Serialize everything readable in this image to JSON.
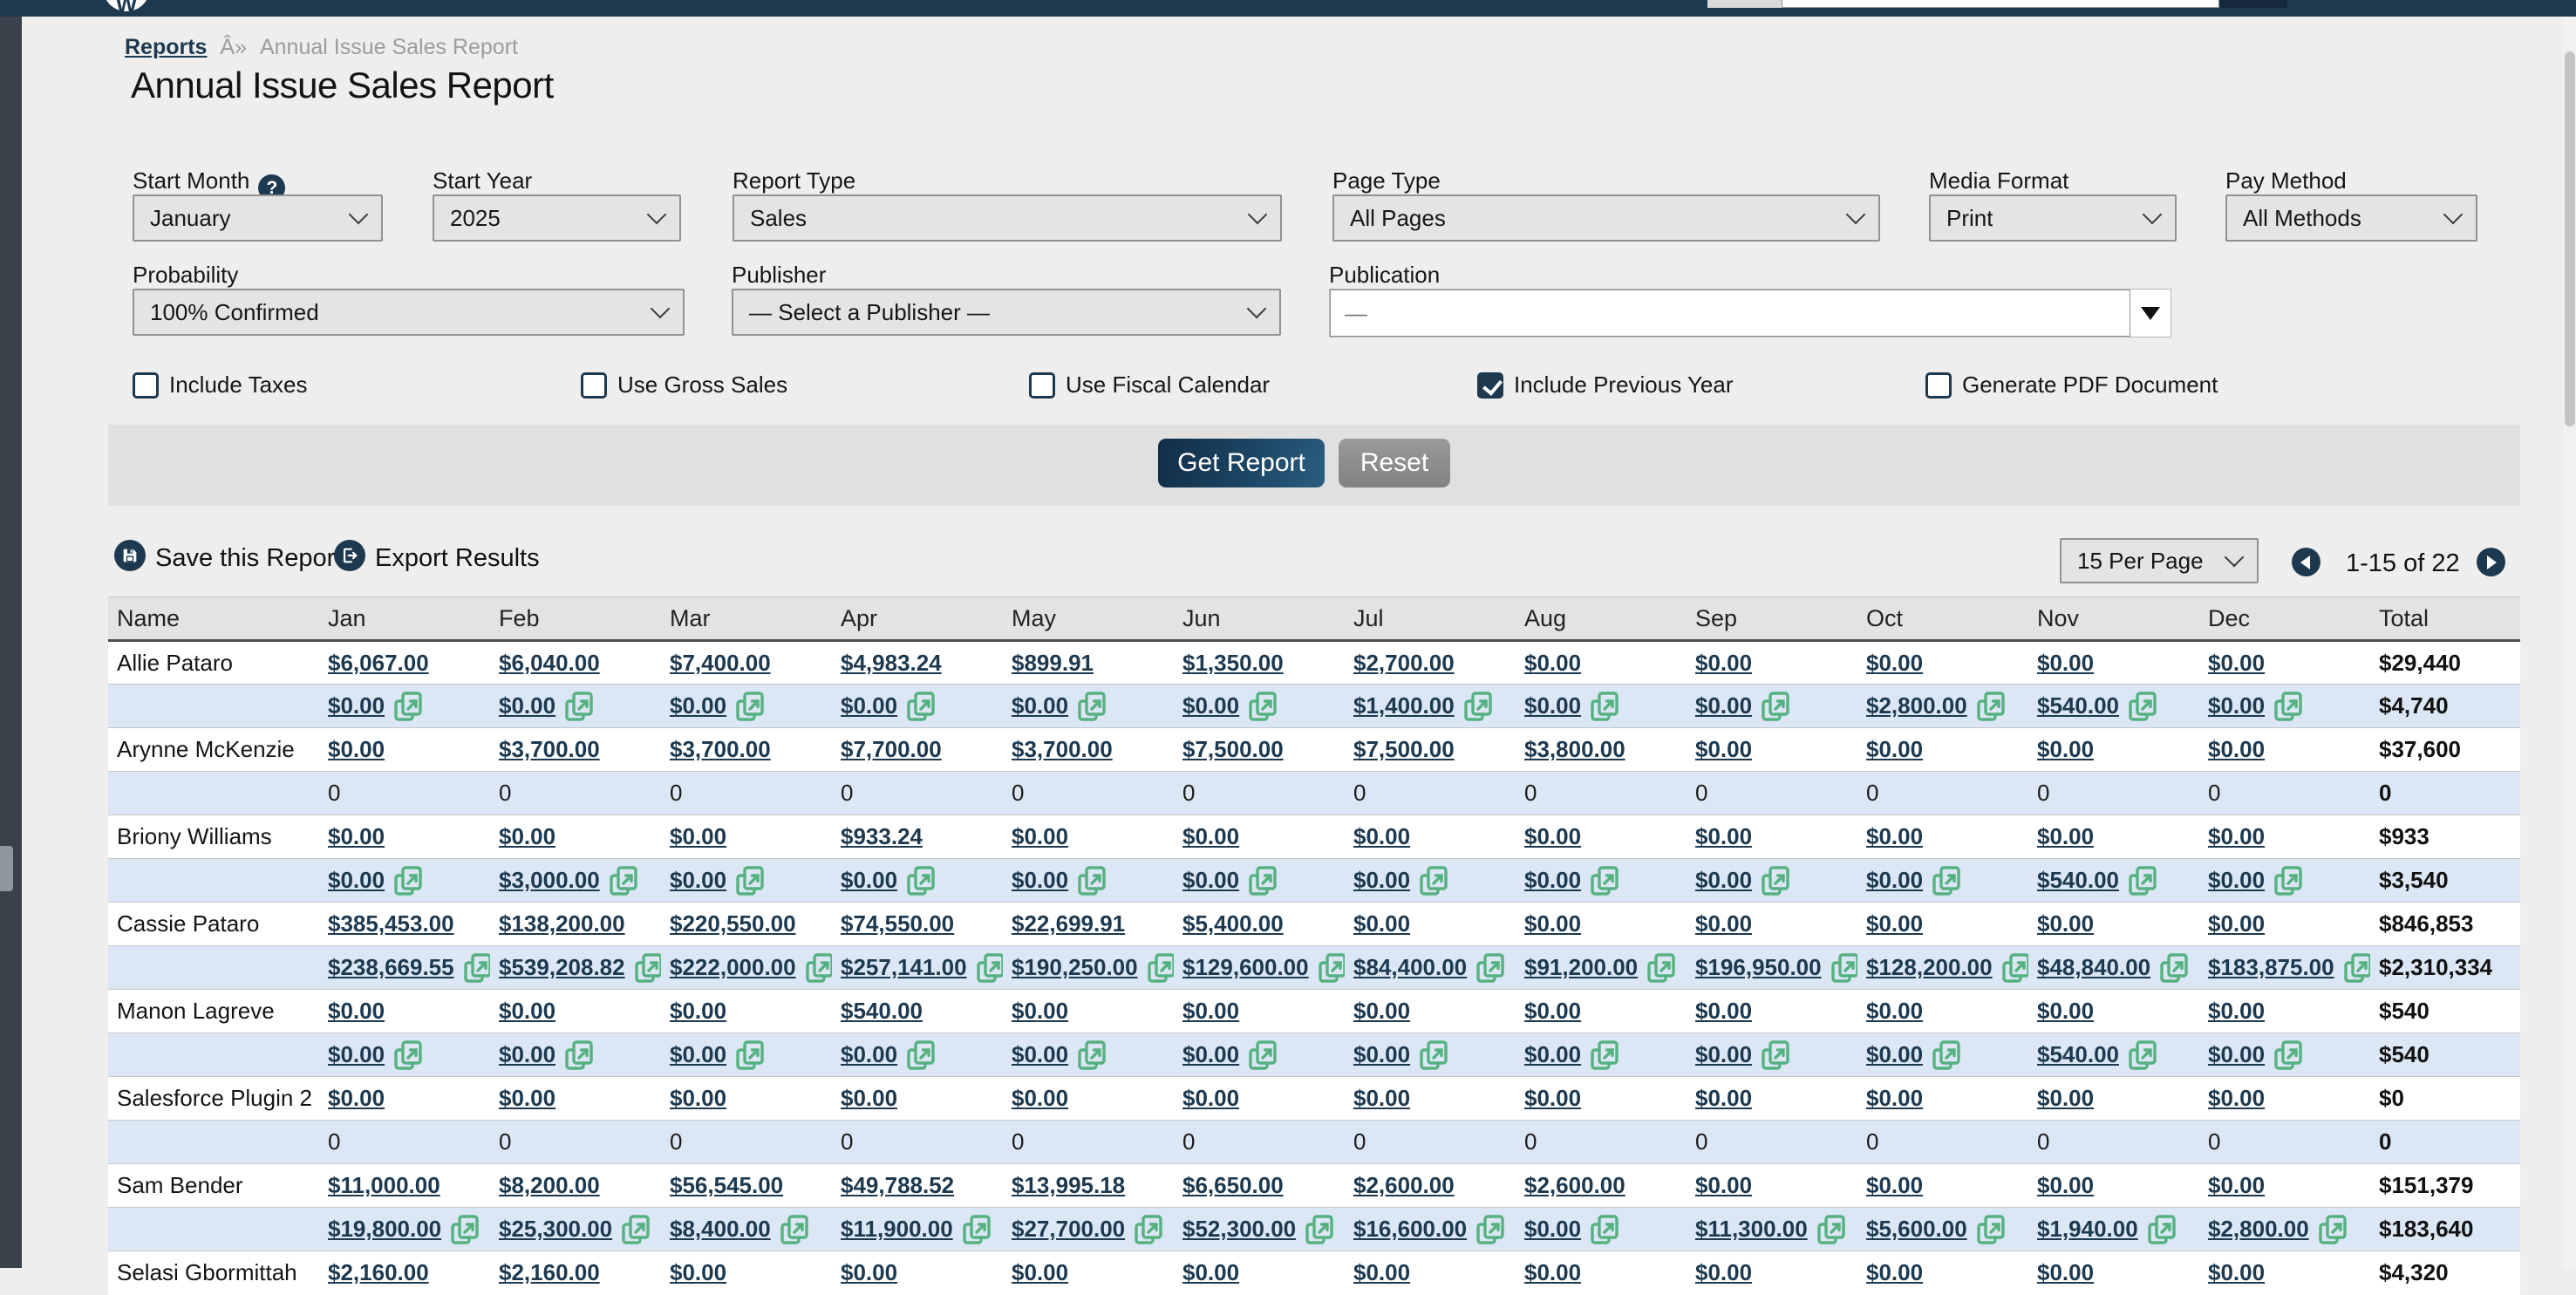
{
  "topbar": {
    "search_value": ""
  },
  "breadcrumb": {
    "link": "Reports",
    "separator": "Â»",
    "current": "Annual Issue Sales Report"
  },
  "page_title": "Annual Issue Sales Report",
  "filters": {
    "row1": [
      {
        "label": "Start Month",
        "value": "January",
        "help": true
      },
      {
        "label": "Start Year",
        "value": "2025"
      },
      {
        "label": "Report Type",
        "value": "Sales"
      },
      {
        "label": "Page Type",
        "value": "All Pages"
      },
      {
        "label": "Media Format",
        "value": "Print"
      },
      {
        "label": "Pay Method",
        "value": "All Methods"
      }
    ],
    "row2": [
      {
        "label": "Probability",
        "value": "100% Confirmed"
      },
      {
        "label": "Publisher",
        "value": "— Select a Publisher —"
      }
    ],
    "publication": {
      "label": "Publication",
      "value": "—"
    },
    "checkboxes": [
      {
        "label": "Include Taxes",
        "checked": false
      },
      {
        "label": "Use Gross Sales",
        "checked": false
      },
      {
        "label": "Use Fiscal Calendar",
        "checked": false
      },
      {
        "label": "Include Previous Year",
        "checked": true
      },
      {
        "label": "Generate PDF Document",
        "checked": false
      }
    ],
    "buttons": {
      "submit": "Get Report",
      "reset": "Reset"
    }
  },
  "toolbar": {
    "save_label": "Save this Report",
    "export_label": "Export Results",
    "per_page_value": "15 Per Page",
    "range": "1-15 of 22"
  },
  "colors": {
    "accent_navy": "#1d3950",
    "link_green": "#56b181",
    "subrow_blue": "#dbe7f4"
  },
  "table": {
    "columns": [
      "Name",
      "Jan",
      "Feb",
      "Mar",
      "Apr",
      "May",
      "Jun",
      "Jul",
      "Aug",
      "Sep",
      "Oct",
      "Nov",
      "Dec",
      "Total"
    ],
    "rows": [
      {
        "name": "Allie Pataro",
        "type": "links",
        "cells": [
          "$6,067.00",
          "$6,040.00",
          "$7,400.00",
          "$4,983.24",
          "$899.91",
          "$1,350.00",
          "$2,700.00",
          "$0.00",
          "$0.00",
          "$0.00",
          "$0.00",
          "$0.00"
        ],
        "total": "$29,440"
      },
      {
        "name": "",
        "type": "ext",
        "cells": [
          "$0.00",
          "$0.00",
          "$0.00",
          "$0.00",
          "$0.00",
          "$0.00",
          "$1,400.00",
          "$0.00",
          "$0.00",
          "$2,800.00",
          "$540.00",
          "$0.00"
        ],
        "total": "$4,740"
      },
      {
        "name": "Arynne McKenzie",
        "type": "links",
        "cells": [
          "$0.00",
          "$3,700.00",
          "$3,700.00",
          "$7,700.00",
          "$3,700.00",
          "$7,500.00",
          "$7,500.00",
          "$3,800.00",
          "$0.00",
          "$0.00",
          "$0.00",
          "$0.00"
        ],
        "total": "$37,600"
      },
      {
        "name": "",
        "type": "plain",
        "cells": [
          "0",
          "0",
          "0",
          "0",
          "0",
          "0",
          "0",
          "0",
          "0",
          "0",
          "0",
          "0"
        ],
        "total": "0"
      },
      {
        "name": "Briony Williams",
        "type": "links",
        "cells": [
          "$0.00",
          "$0.00",
          "$0.00",
          "$933.24",
          "$0.00",
          "$0.00",
          "$0.00",
          "$0.00",
          "$0.00",
          "$0.00",
          "$0.00",
          "$0.00"
        ],
        "total": "$933"
      },
      {
        "name": "",
        "type": "ext",
        "cells": [
          "$0.00",
          "$3,000.00",
          "$0.00",
          "$0.00",
          "$0.00",
          "$0.00",
          "$0.00",
          "$0.00",
          "$0.00",
          "$0.00",
          "$540.00",
          "$0.00"
        ],
        "total": "$3,540"
      },
      {
        "name": "Cassie Pataro",
        "type": "links",
        "cells": [
          "$385,453.00",
          "$138,200.00",
          "$220,550.00",
          "$74,550.00",
          "$22,699.91",
          "$5,400.00",
          "$0.00",
          "$0.00",
          "$0.00",
          "$0.00",
          "$0.00",
          "$0.00"
        ],
        "total": "$846,853"
      },
      {
        "name": "",
        "type": "ext",
        "cells": [
          "$238,669.55",
          "$539,208.82",
          "$222,000.00",
          "$257,141.00",
          "$190,250.00",
          "$129,600.00",
          "$84,400.00",
          "$91,200.00",
          "$196,950.00",
          "$128,200.00",
          "$48,840.00",
          "$183,875.00"
        ],
        "total": "$2,310,334"
      },
      {
        "name": "Manon Lagreve",
        "type": "links",
        "cells": [
          "$0.00",
          "$0.00",
          "$0.00",
          "$540.00",
          "$0.00",
          "$0.00",
          "$0.00",
          "$0.00",
          "$0.00",
          "$0.00",
          "$0.00",
          "$0.00"
        ],
        "total": "$540"
      },
      {
        "name": "",
        "type": "ext",
        "cells": [
          "$0.00",
          "$0.00",
          "$0.00",
          "$0.00",
          "$0.00",
          "$0.00",
          "$0.00",
          "$0.00",
          "$0.00",
          "$0.00",
          "$540.00",
          "$0.00"
        ],
        "total": "$540"
      },
      {
        "name": "Salesforce Plugin 2",
        "type": "links",
        "cells": [
          "$0.00",
          "$0.00",
          "$0.00",
          "$0.00",
          "$0.00",
          "$0.00",
          "$0.00",
          "$0.00",
          "$0.00",
          "$0.00",
          "$0.00",
          "$0.00"
        ],
        "total": "$0"
      },
      {
        "name": "",
        "type": "plain",
        "cells": [
          "0",
          "0",
          "0",
          "0",
          "0",
          "0",
          "0",
          "0",
          "0",
          "0",
          "0",
          "0"
        ],
        "total": "0"
      },
      {
        "name": "Sam Bender",
        "type": "links",
        "cells": [
          "$11,000.00",
          "$8,200.00",
          "$56,545.00",
          "$49,788.52",
          "$13,995.18",
          "$6,650.00",
          "$2,600.00",
          "$2,600.00",
          "$0.00",
          "$0.00",
          "$0.00",
          "$0.00"
        ],
        "total": "$151,379"
      },
      {
        "name": "",
        "type": "ext",
        "cells": [
          "$19,800.00",
          "$25,300.00",
          "$8,400.00",
          "$11,900.00",
          "$27,700.00",
          "$52,300.00",
          "$16,600.00",
          "$0.00",
          "$11,300.00",
          "$5,600.00",
          "$1,940.00",
          "$2,800.00"
        ],
        "total": "$183,640"
      },
      {
        "name": "Selasi Gbormittah",
        "type": "links",
        "cells": [
          "$2,160.00",
          "$2,160.00",
          "$0.00",
          "$0.00",
          "$0.00",
          "$0.00",
          "$0.00",
          "$0.00",
          "$0.00",
          "$0.00",
          "$0.00",
          "$0.00"
        ],
        "total": "$4,320"
      }
    ]
  }
}
